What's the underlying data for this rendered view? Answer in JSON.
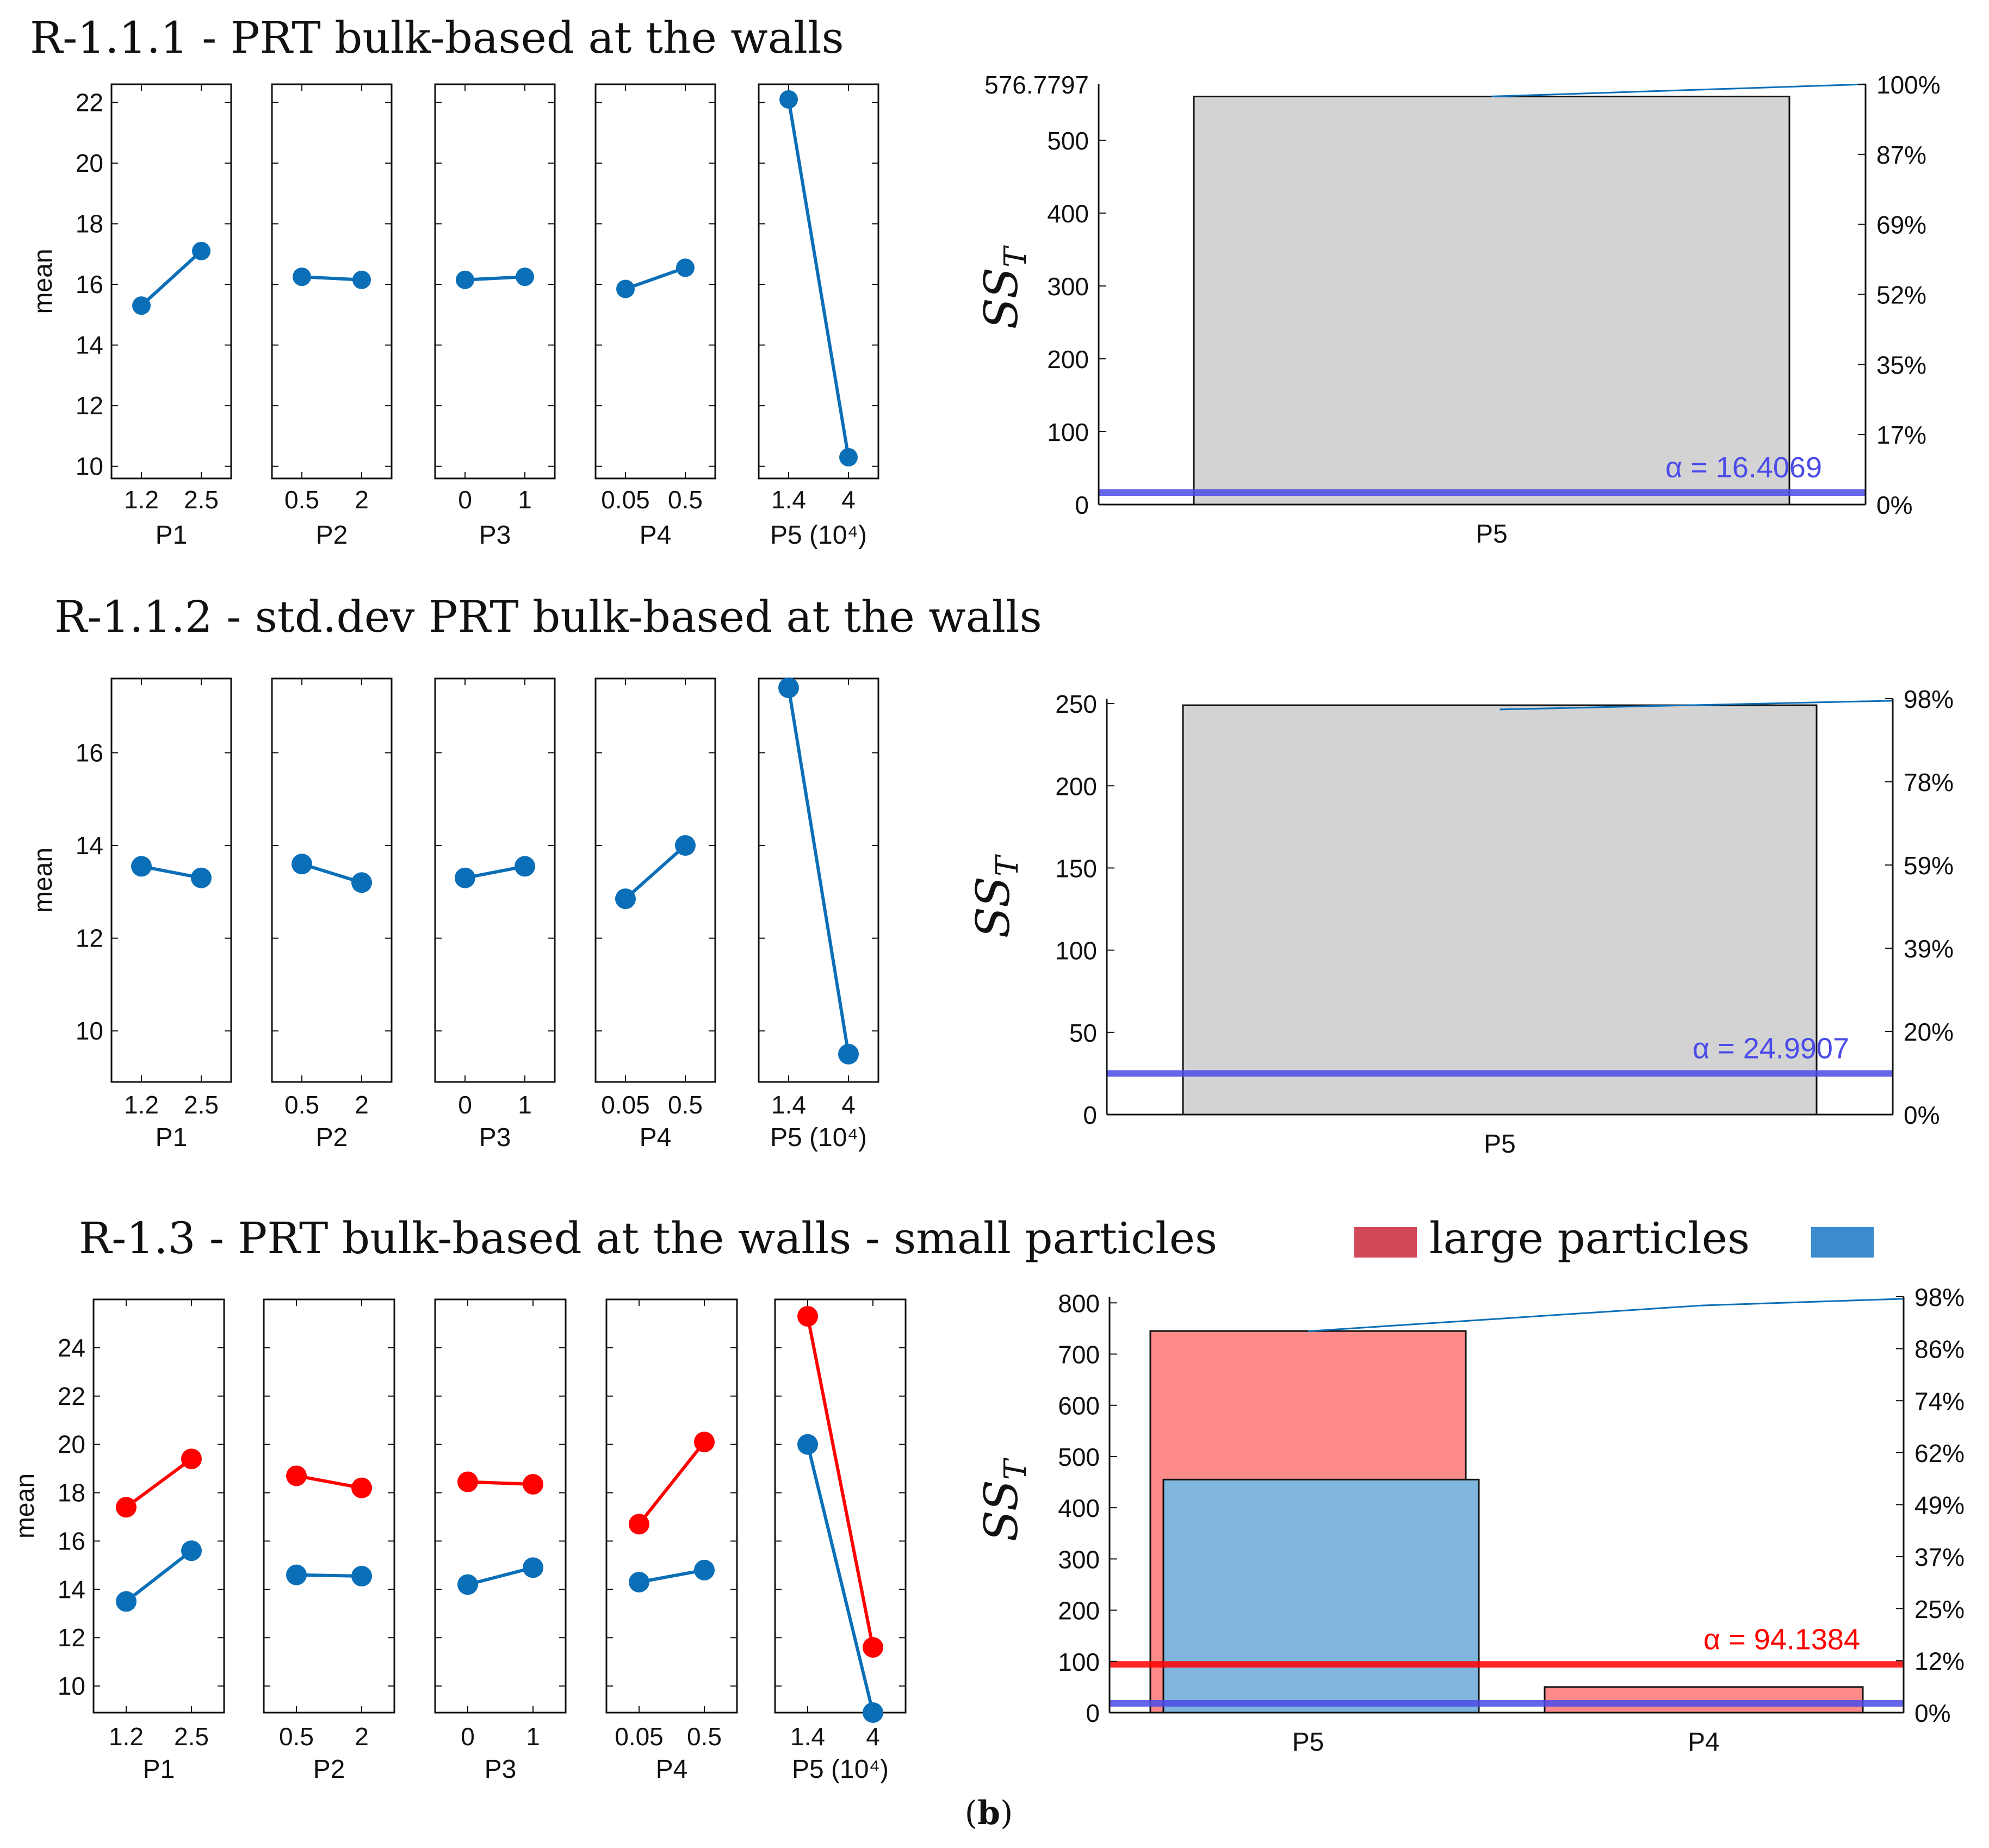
{
  "figure_caption": {
    "open": "(",
    "letter": "b",
    "close": ")"
  },
  "colors": {
    "blue": "#0b6fb8",
    "red": "#ff0000",
    "bar_gray": "#d3d3d3",
    "bar_red": "#ff8a8a",
    "bar_blue": "#80b6dd",
    "alpha_blue": "#4b4be8",
    "alpha_red": "#ff0000",
    "legend_red": "#d4495a",
    "legend_blue": "#3a8bcf"
  },
  "rows": [
    {
      "title": "R-1.1.1 - PRT bulk-based at the walls",
      "legend": null,
      "main_effects": {
        "ylabel": "mean",
        "ylim": [
          9.6,
          22.6
        ],
        "yticks": [
          10,
          12,
          14,
          16,
          18,
          20,
          22
        ],
        "panels": [
          {
            "xlabel": "P1",
            "levels": [
              "1.2",
              "2.5"
            ],
            "series": [
              {
                "color": "blue",
                "values": [
                  15.3,
                  17.1
                ]
              }
            ]
          },
          {
            "xlabel": "P2",
            "levels": [
              "0.5",
              "2"
            ],
            "series": [
              {
                "color": "blue",
                "values": [
                  16.25,
                  16.15
                ]
              }
            ]
          },
          {
            "xlabel": "P3",
            "levels": [
              "0",
              "1"
            ],
            "series": [
              {
                "color": "blue",
                "values": [
                  16.15,
                  16.25
                ]
              }
            ]
          },
          {
            "xlabel": "P4",
            "levels": [
              "0.05",
              "0.5"
            ],
            "series": [
              {
                "color": "blue",
                "values": [
                  15.85,
                  16.55
                ]
              }
            ]
          },
          {
            "xlabel": "P5 (10⁴)",
            "levels": [
              "1.4",
              "4"
            ],
            "series": [
              {
                "color": "blue",
                "values": [
                  22.1,
                  10.3
                ]
              }
            ]
          }
        ]
      },
      "pareto": {
        "ylabel": "SS",
        "ylabel_sub": "T",
        "ylim": [
          0,
          576.7797
        ],
        "yticks": [
          0,
          100,
          200,
          300,
          400,
          500
        ],
        "ymax_label": "576.7797",
        "right_ticks": [
          "0%",
          "17%",
          "35%",
          "52%",
          "69%",
          "87%",
          "100%"
        ],
        "categories": [
          "P5"
        ],
        "bars": [
          [
            {
              "color": "bar_gray",
              "value": 560
            }
          ]
        ],
        "cumulative": [
          97.1,
          100
        ],
        "alpha_lines": [
          {
            "color": "alpha_blue",
            "value": 16.4069
          }
        ],
        "alpha_labels": [
          {
            "symbol": "α",
            "text": "= 16.4069",
            "color": "alpha_blue"
          }
        ]
      }
    },
    {
      "title": "R-1.1.2 - std.dev PRT bulk-based at the walls",
      "legend": null,
      "main_effects": {
        "ylabel": "mean",
        "ylim": [
          8.9,
          17.6
        ],
        "yticks": [
          10,
          12,
          14,
          16
        ],
        "panels": [
          {
            "xlabel": "P1",
            "levels": [
              "1.2",
              "2.5"
            ],
            "series": [
              {
                "color": "blue",
                "values": [
                  13.55,
                  13.3
                ]
              }
            ]
          },
          {
            "xlabel": "P2",
            "levels": [
              "0.5",
              "2"
            ],
            "series": [
              {
                "color": "blue",
                "values": [
                  13.6,
                  13.2
                ]
              }
            ]
          },
          {
            "xlabel": "P3",
            "levels": [
              "0",
              "1"
            ],
            "series": [
              {
                "color": "blue",
                "values": [
                  13.3,
                  13.55
                ]
              }
            ]
          },
          {
            "xlabel": "P4",
            "levels": [
              "0.05",
              "0.5"
            ],
            "series": [
              {
                "color": "blue",
                "values": [
                  12.85,
                  14.0
                ]
              }
            ]
          },
          {
            "xlabel": "P5 (10⁴)",
            "levels": [
              "1.4",
              "4"
            ],
            "series": [
              {
                "color": "blue",
                "values": [
                  17.4,
                  9.5
                ]
              }
            ]
          }
        ]
      },
      "pareto": {
        "ylabel": "SS",
        "ylabel_sub": "T",
        "ylim": [
          0,
          253
        ],
        "yticks": [
          0,
          50,
          100,
          150,
          200,
          250
        ],
        "ymax_label": null,
        "right_ticks": [
          "0%",
          "20%",
          "39%",
          "59%",
          "78%",
          "98%"
        ],
        "categories": [
          "P5"
        ],
        "bars": [
          [
            {
              "color": "bar_gray",
              "value": 249
            }
          ]
        ],
        "cumulative": [
          97.4,
          99.5
        ],
        "alpha_lines": [
          {
            "color": "alpha_blue",
            "value": 24.9907
          }
        ],
        "alpha_labels": [
          {
            "symbol": "α",
            "text": "= 24.9907",
            "color": "alpha_blue"
          }
        ]
      }
    },
    {
      "title": "R-1.3 - PRT bulk-based at the walls - small particles",
      "legend": {
        "small_color": "legend_red",
        "large_label": "large particles",
        "large_color": "legend_blue"
      },
      "main_effects": {
        "ylabel": "mean",
        "ylim": [
          8.9,
          26.0
        ],
        "yticks": [
          10,
          12,
          14,
          16,
          18,
          20,
          22,
          24
        ],
        "panels": [
          {
            "xlabel": "P1",
            "levels": [
              "1.2",
              "2.5"
            ],
            "series": [
              {
                "color": "red",
                "values": [
                  17.4,
                  19.4
                ]
              },
              {
                "color": "blue",
                "values": [
                  13.5,
                  15.6
                ]
              }
            ]
          },
          {
            "xlabel": "P2",
            "levels": [
              "0.5",
              "2"
            ],
            "series": [
              {
                "color": "red",
                "values": [
                  18.7,
                  18.2
                ]
              },
              {
                "color": "blue",
                "values": [
                  14.6,
                  14.55
                ]
              }
            ]
          },
          {
            "xlabel": "P3",
            "levels": [
              "0",
              "1"
            ],
            "series": [
              {
                "color": "red",
                "values": [
                  18.45,
                  18.35
                ]
              },
              {
                "color": "blue",
                "values": [
                  14.2,
                  14.9
                ]
              }
            ]
          },
          {
            "xlabel": "P4",
            "levels": [
              "0.05",
              "0.5"
            ],
            "series": [
              {
                "color": "red",
                "values": [
                  16.7,
                  20.1
                ]
              },
              {
                "color": "blue",
                "values": [
                  14.3,
                  14.8
                ]
              }
            ]
          },
          {
            "xlabel": "P5 (10⁴)",
            "levels": [
              "1.4",
              "4"
            ],
            "series": [
              {
                "color": "red",
                "values": [
                  25.3,
                  11.6
                ]
              },
              {
                "color": "blue",
                "values": [
                  20.0,
                  8.9
                ]
              }
            ]
          }
        ]
      },
      "pareto": {
        "ylabel": "SS",
        "ylabel_sub": "T",
        "ylim": [
          0,
          812
        ],
        "yticks": [
          0,
          100,
          200,
          300,
          400,
          500,
          600,
          700,
          800
        ],
        "ymax_label": null,
        "right_ticks": [
          "0%",
          "12%",
          "25%",
          "37%",
          "49%",
          "62%",
          "74%",
          "86%",
          "98%"
        ],
        "categories": [
          "P5",
          "P4"
        ],
        "bars": [
          [
            {
              "color": "bar_red",
              "value": 745
            },
            {
              "color": "bar_blue",
              "value": 455
            }
          ],
          [
            {
              "color": "bar_red",
              "value": 50
            },
            {
              "color": "bar_blue",
              "value": 0
            }
          ]
        ],
        "cumulative": [
          91.7,
          97.9,
          99.5
        ],
        "alpha_lines": [
          {
            "color": "alpha_red",
            "value": 94.1384
          },
          {
            "color": "alpha_blue",
            "value": 18
          }
        ],
        "alpha_labels": [
          {
            "symbol": "α",
            "text": "= 94.1384",
            "color": "alpha_red"
          }
        ]
      }
    }
  ]
}
